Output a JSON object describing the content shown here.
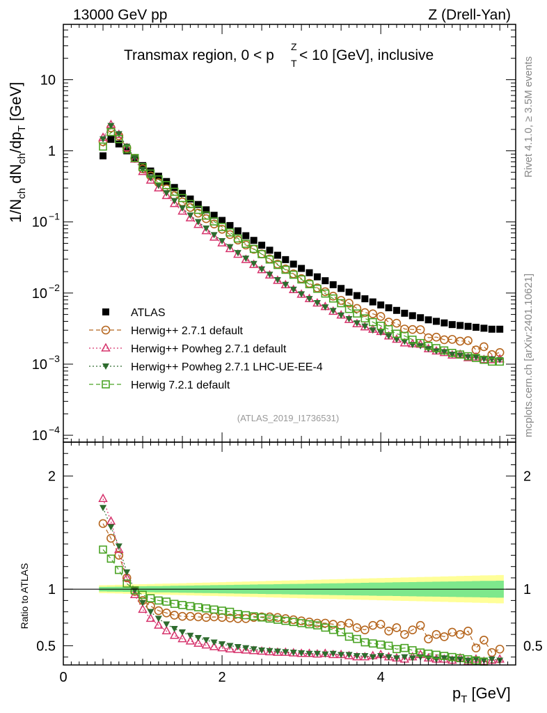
{
  "header": {
    "left": "13000 GeV pp",
    "right": "Z (Drell-Yan)",
    "plot_title": "Transmax region, 0 < p",
    "plot_title_sup": "Z",
    "plot_title_sub": "T",
    "plot_title_rest": " < 10 [GeV], inclusive"
  },
  "side_text": {
    "rivet": "Rivet 4.1.0, ≥ 3.5M events",
    "mcplots": "mcplots.cern.ch [arXiv:2401.10621]"
  },
  "reference": "(ATLAS_2019_I1736531)",
  "axes": {
    "ylabel_top": "1/N",
    "ylabel_top_sub1": "ch",
    "ylabel_top_mid": " dN",
    "ylabel_top_sub2": "ch",
    "ylabel_top_mid2": "/dp",
    "ylabel_top_sub3": "T",
    "ylabel_top_unit": " [GeV]",
    "ylabel_ratio": "Ratio to ATLAS",
    "xlabel": "p",
    "xlabel_sub": "T",
    "xlabel_unit": " [GeV]",
    "x_ticks": [
      "0",
      "2",
      "4"
    ],
    "y_ticks_top": [
      {
        "base": "10",
        "exp": "−4",
        "value": 0.0001
      },
      {
        "base": "10",
        "exp": "−3",
        "value": 0.001
      },
      {
        "base": "10",
        "exp": "−2",
        "value": 0.01
      },
      {
        "base": "10",
        "exp": "−1",
        "value": 0.1
      },
      {
        "base": "1",
        "exp": "",
        "value": 1
      },
      {
        "base": "10",
        "exp": "",
        "value": 10
      }
    ],
    "y_ticks_ratio": [
      "0.5",
      "1",
      "2"
    ]
  },
  "chart_data": {
    "type": "scatter",
    "title": "Transmax region, 0 < pT^Z < 10 [GeV], inclusive",
    "xlabel": "pT [GeV]",
    "ylabel": "1/Nch dNch/dpT [GeV]",
    "xlim": [
      0,
      5.7
    ],
    "ylim": [
      8e-05,
      60
    ],
    "yscale": "log",
    "ratio_ylim": [
      0.33,
      2.3
    ],
    "x": [
      0.5,
      0.6,
      0.7,
      0.8,
      0.9,
      1.0,
      1.1,
      1.2,
      1.3,
      1.4,
      1.5,
      1.6,
      1.7,
      1.8,
      1.9,
      2.0,
      2.1,
      2.2,
      2.3,
      2.4,
      2.5,
      2.6,
      2.7,
      2.8,
      2.9,
      3.0,
      3.1,
      3.2,
      3.3,
      3.4,
      3.5,
      3.6,
      3.7,
      3.8,
      3.9,
      4.0,
      4.1,
      4.2,
      4.3,
      4.4,
      4.5,
      4.6,
      4.7,
      4.8,
      4.9,
      5.0,
      5.1,
      5.2,
      5.3,
      5.4,
      5.5
    ],
    "series": [
      {
        "name": "ATLAS",
        "color": "#000000",
        "marker": "filled-square",
        "values": [
          0.85,
          1.45,
          1.25,
          1.0,
          0.8,
          0.62,
          0.52,
          0.44,
          0.37,
          0.305,
          0.252,
          0.21,
          0.176,
          0.148,
          0.124,
          0.105,
          0.089,
          0.075,
          0.064,
          0.055,
          0.047,
          0.04,
          0.034,
          0.0295,
          0.0255,
          0.0222,
          0.0193,
          0.0169,
          0.0149,
          0.0131,
          0.0116,
          0.0103,
          0.0092,
          0.0083,
          0.0075,
          0.0068,
          0.0062,
          0.0057,
          0.0052,
          0.0048,
          0.0045,
          0.0042,
          0.004,
          0.0038,
          0.0036,
          0.0035,
          0.0034,
          0.0033,
          0.0032,
          0.0031,
          0.0031
        ],
        "ratio": [
          1,
          1,
          1,
          1,
          1,
          1,
          1,
          1,
          1,
          1,
          1,
          1,
          1,
          1,
          1,
          1,
          1,
          1,
          1,
          1,
          1,
          1,
          1,
          1,
          1,
          1,
          1,
          1,
          1,
          1,
          1,
          1,
          1,
          1,
          1,
          1,
          1,
          1,
          1,
          1,
          1,
          1,
          1,
          1,
          1,
          1,
          1,
          1,
          1,
          1,
          1
        ]
      },
      {
        "name": "Herwig++ 2.7.1 default",
        "color": "#b5651d",
        "marker": "open-circle",
        "line": "dashed",
        "ratio": [
          1.58,
          1.45,
          1.3,
          1.1,
          0.98,
          0.9,
          0.85,
          0.81,
          0.79,
          0.77,
          0.76,
          0.76,
          0.755,
          0.75,
          0.755,
          0.75,
          0.745,
          0.74,
          0.74,
          0.75,
          0.755,
          0.755,
          0.75,
          0.74,
          0.73,
          0.72,
          0.71,
          0.7,
          0.7,
          0.69,
          0.68,
          0.7,
          0.66,
          0.64,
          0.68,
          0.69,
          0.63,
          0.66,
          0.6,
          0.64,
          0.68,
          0.56,
          0.6,
          0.58,
          0.62,
          0.6,
          0.63,
          0.48,
          0.55,
          0.44,
          0.47
        ]
      },
      {
        "name": "Herwig++ Powheg 2.7.1 default",
        "color": "#d6336c",
        "marker": "open-triangle",
        "line": "dotted",
        "ratio": [
          1.8,
          1.6,
          1.35,
          1.1,
          0.95,
          0.82,
          0.74,
          0.68,
          0.63,
          0.59,
          0.56,
          0.54,
          0.52,
          0.505,
          0.49,
          0.48,
          0.47,
          0.465,
          0.46,
          0.455,
          0.45,
          0.445,
          0.44,
          0.44,
          0.435,
          0.43,
          0.43,
          0.425,
          0.43,
          0.42,
          0.42,
          0.41,
          0.4,
          0.4,
          0.41,
          0.42,
          0.4,
          0.39,
          0.38,
          0.4,
          0.42,
          0.39,
          0.38,
          0.38,
          0.37,
          0.39,
          0.36,
          0.38,
          0.36,
          0.37,
          0.38
        ]
      },
      {
        "name": "Herwig++ Powheg 2.7.1 LHC-UE-EE-4",
        "color": "#2e6b2e",
        "marker": "filled-triangle-down",
        "line": "dotted",
        "ratio": [
          1.72,
          1.55,
          1.38,
          1.15,
          0.99,
          0.88,
          0.8,
          0.74,
          0.69,
          0.65,
          0.62,
          0.59,
          0.57,
          0.55,
          0.53,
          0.515,
          0.5,
          0.49,
          0.48,
          0.47,
          0.46,
          0.455,
          0.45,
          0.445,
          0.44,
          0.435,
          0.43,
          0.43,
          0.425,
          0.43,
          0.42,
          0.42,
          0.41,
          0.41,
          0.4,
          0.41,
          0.4,
          0.39,
          0.4,
          0.39,
          0.4,
          0.39,
          0.38,
          0.39,
          0.38,
          0.38,
          0.37,
          0.38,
          0.37,
          0.38,
          0.37
        ]
      },
      {
        "name": "Herwig 7.2.1 default",
        "color": "#4aa324",
        "marker": "open-square",
        "line": "dashed",
        "ratio": [
          1.35,
          1.27,
          1.17,
          1.05,
          0.99,
          0.95,
          0.92,
          0.9,
          0.89,
          0.87,
          0.86,
          0.85,
          0.84,
          0.83,
          0.82,
          0.81,
          0.8,
          0.78,
          0.77,
          0.76,
          0.75,
          0.74,
          0.73,
          0.72,
          0.71,
          0.7,
          0.69,
          0.68,
          0.66,
          0.64,
          0.62,
          0.58,
          0.56,
          0.53,
          0.52,
          0.51,
          0.5,
          0.47,
          0.48,
          0.46,
          0.44,
          0.43,
          0.42,
          0.41,
          0.4,
          0.39,
          0.38,
          0.37,
          0.36,
          0.35,
          0.35
        ]
      }
    ],
    "band": {
      "inner_color": "#7ee88c",
      "outer_color": "#ffff99"
    }
  }
}
